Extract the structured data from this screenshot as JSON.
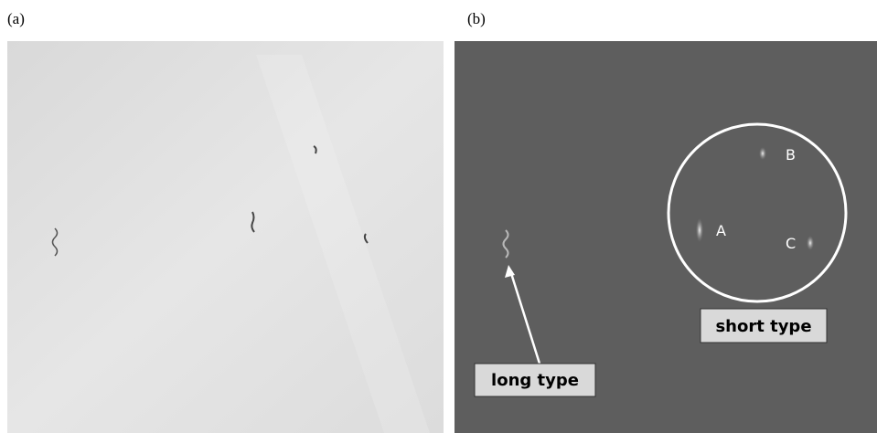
{
  "panels": [
    {
      "label": "(a)"
    },
    {
      "label": "(b)",
      "annotations": {
        "points": [
          "A",
          "B",
          "C"
        ],
        "short": "short type",
        "long": "long type"
      }
    }
  ]
}
